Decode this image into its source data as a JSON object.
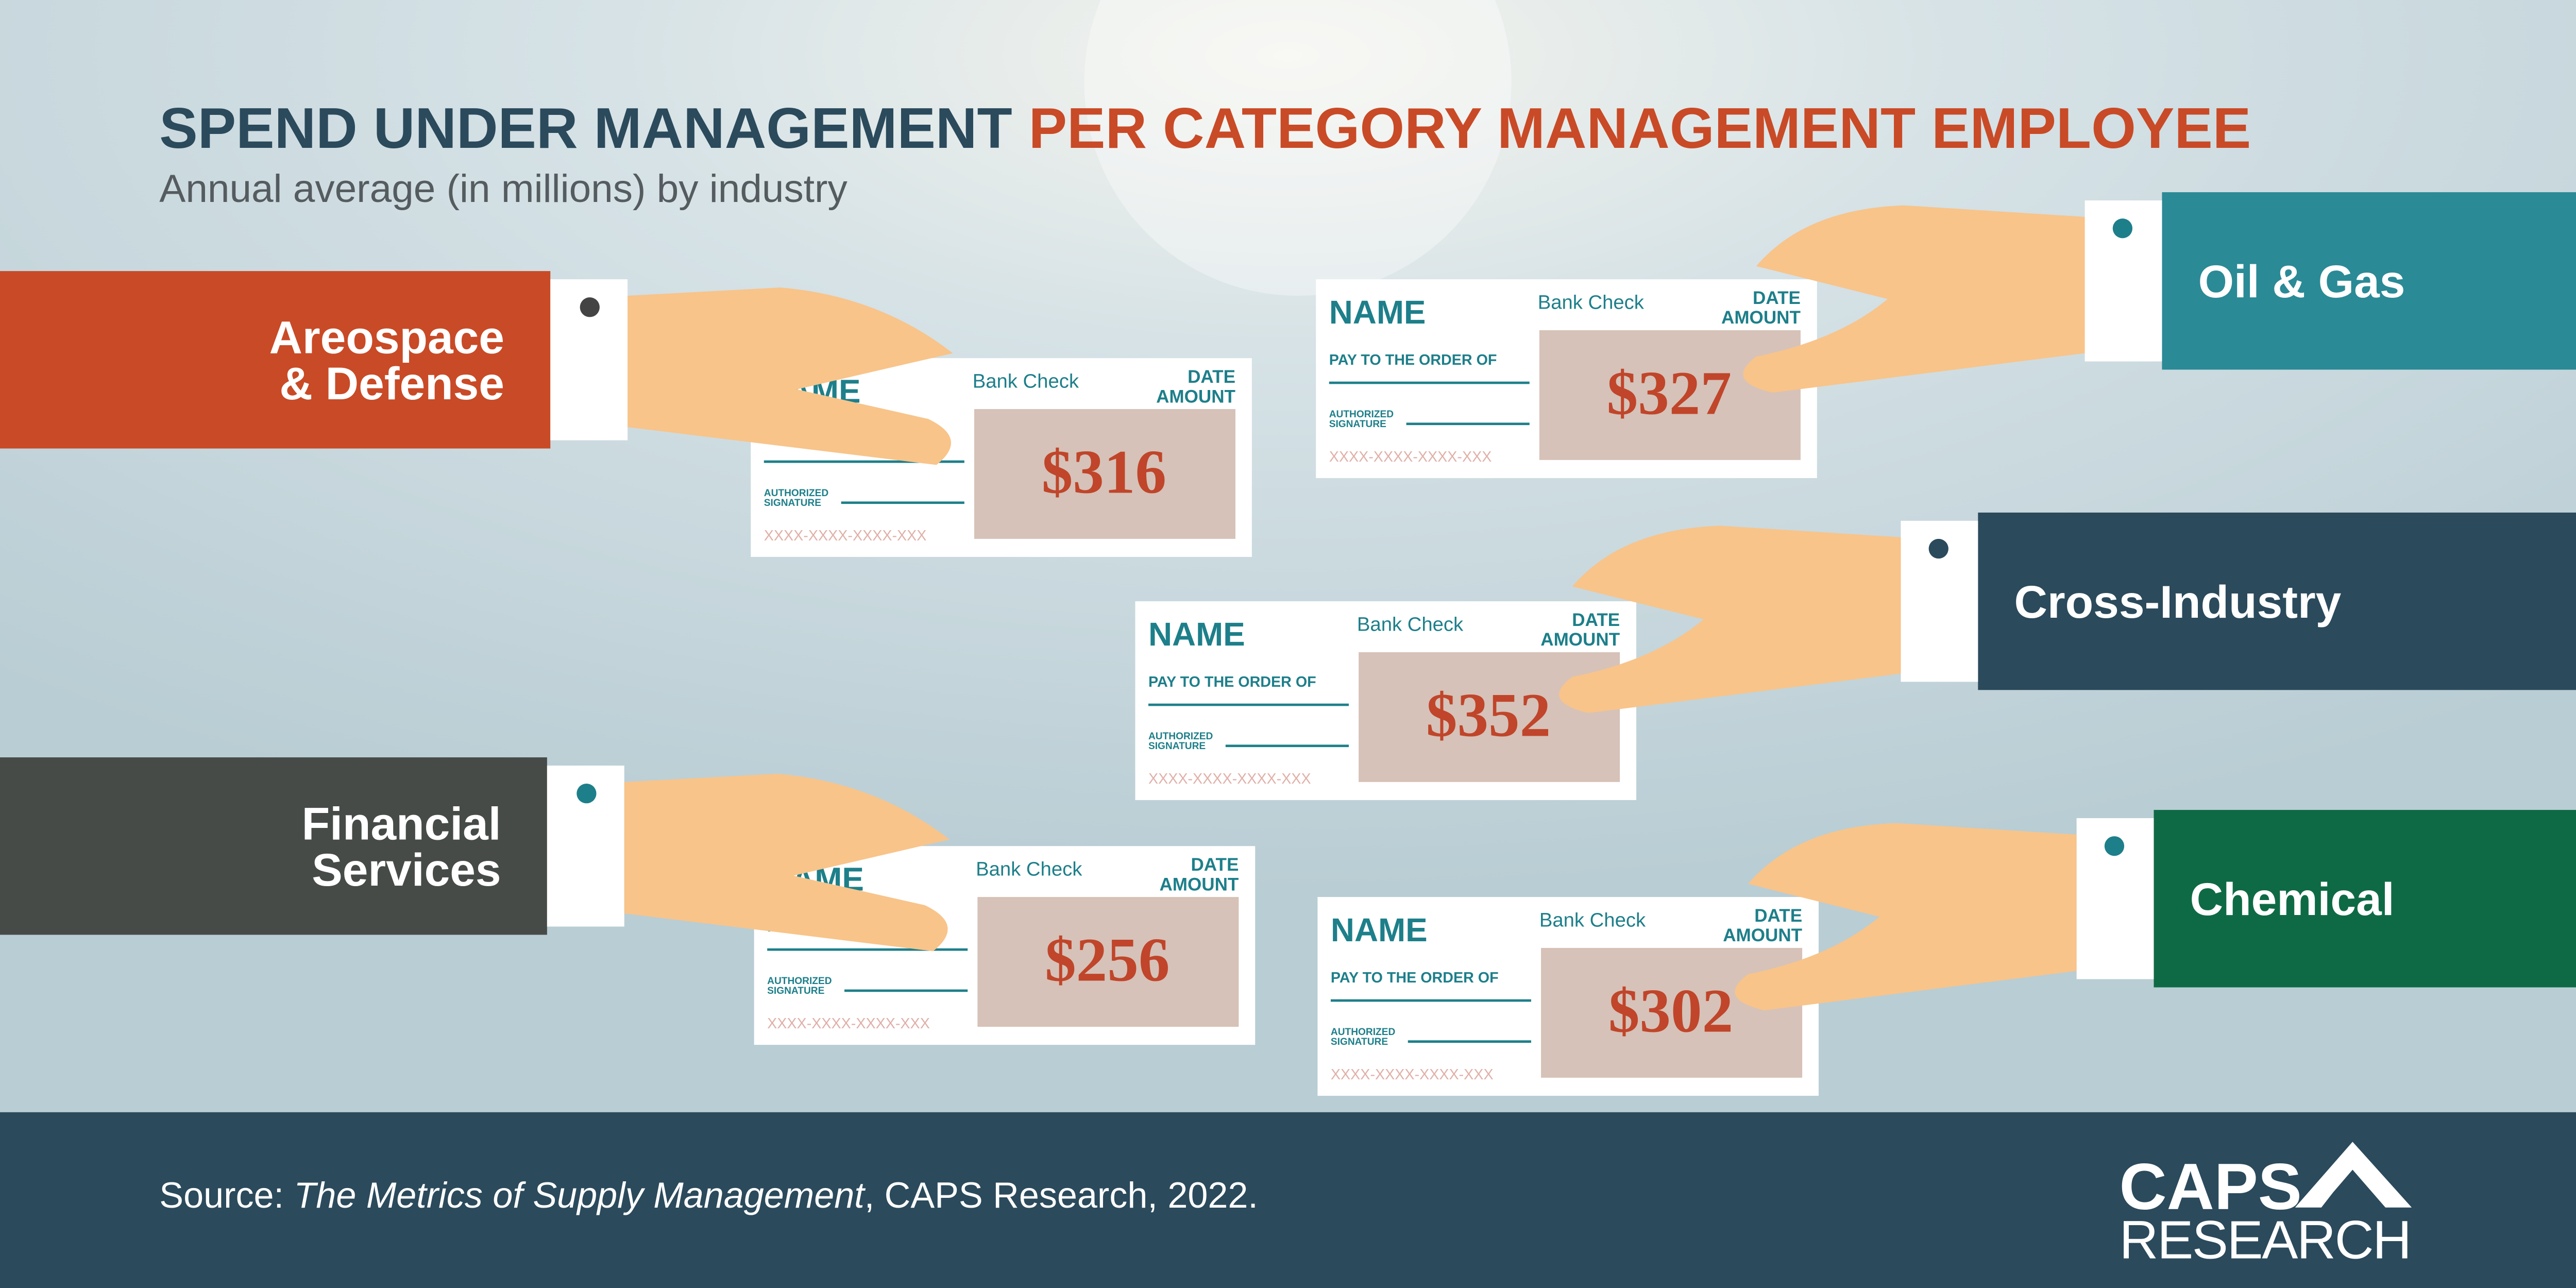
{
  "header": {
    "title_part1": "SPEND UNDER MANAGEMENT",
    "title_part2": "PER CATEGORY MANAGEMENT EMPLOYEE",
    "subtitle": "Annual average (in millions) by industry"
  },
  "check_labels": {
    "name": "NAME",
    "bank": "Bank Check",
    "date": "DATE",
    "amount": "AMOUNT",
    "pay": "PAY TO THE ORDER OF",
    "authorized": "AUTHORIZED",
    "signature": "SIGNATURE",
    "number": "XXXX-XXXX-XXXX-XXX"
  },
  "checks": [
    {
      "industry": [
        "Areospace",
        "& Defense"
      ],
      "amount": "$316"
    },
    {
      "industry": [
        "Oil & Gas"
      ],
      "amount": "$327"
    },
    {
      "industry": [
        "Cross-Industry"
      ],
      "amount": "$352"
    },
    {
      "industry": [
        "Financial",
        "Services"
      ],
      "amount": "$256"
    },
    {
      "industry": [
        "Chemical"
      ],
      "amount": "$302"
    }
  ],
  "footer": {
    "source_prefix": "Source: ",
    "source_title": "The Metrics of Supply Management",
    "source_suffix": ", CAPS Research, 2022.",
    "logo_top": "CAPS",
    "logo_bottom": "RESEARCH"
  }
}
